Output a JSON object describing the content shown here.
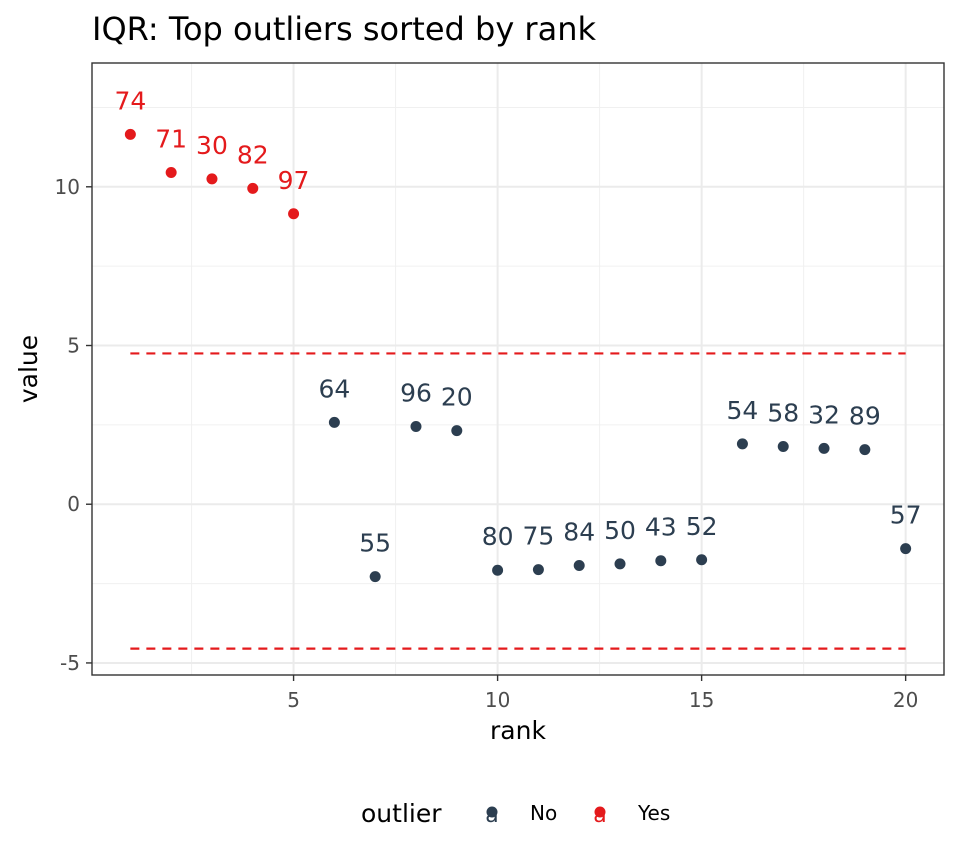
{
  "chart_data": {
    "type": "scatter",
    "title": "IQR: Top outliers sorted by rank",
    "xlabel": "rank",
    "ylabel": "value",
    "xlim": [
      0.06,
      20.94
    ],
    "ylim": [
      -5.38,
      13.9
    ],
    "x_ticks": [
      5,
      10,
      15,
      20
    ],
    "x_tick_labels": [
      "5",
      "10",
      "15",
      "20"
    ],
    "y_ticks": [
      -5,
      0,
      5,
      10
    ],
    "y_tick_labels": [
      "-5",
      "0",
      "5",
      "10"
    ],
    "x_minor_ticks": [
      2.5,
      7.5,
      12.5,
      17.5
    ],
    "y_minor_ticks": [
      -2.5,
      2.5,
      7.5,
      12.5
    ],
    "grid": true,
    "thresholds": {
      "upper": 4.75,
      "lower": -4.55,
      "x_range": [
        1,
        20
      ],
      "color": "#e41a1c",
      "style": "dashed"
    },
    "colors": {
      "No": "#2c3e50",
      "Yes": "#e41a1c"
    },
    "points": [
      {
        "rank": 1,
        "value": 11.65,
        "label": "74",
        "outlier": "Yes"
      },
      {
        "rank": 2,
        "value": 10.45,
        "label": "71",
        "outlier": "Yes"
      },
      {
        "rank": 3,
        "value": 10.25,
        "label": "30",
        "outlier": "Yes"
      },
      {
        "rank": 4,
        "value": 9.95,
        "label": "82",
        "outlier": "Yes"
      },
      {
        "rank": 5,
        "value": 9.15,
        "label": "97",
        "outlier": "Yes"
      },
      {
        "rank": 6,
        "value": 2.58,
        "label": "64",
        "outlier": "No"
      },
      {
        "rank": 7,
        "value": -2.28,
        "label": "55",
        "outlier": "No"
      },
      {
        "rank": 8,
        "value": 2.45,
        "label": "96",
        "outlier": "No"
      },
      {
        "rank": 9,
        "value": 2.32,
        "label": "20",
        "outlier": "No"
      },
      {
        "rank": 10,
        "value": -2.08,
        "label": "80",
        "outlier": "No"
      },
      {
        "rank": 11,
        "value": -2.06,
        "label": "75",
        "outlier": "No"
      },
      {
        "rank": 12,
        "value": -1.93,
        "label": "84",
        "outlier": "No"
      },
      {
        "rank": 13,
        "value": -1.88,
        "label": "50",
        "outlier": "No"
      },
      {
        "rank": 14,
        "value": -1.78,
        "label": "43",
        "outlier": "No"
      },
      {
        "rank": 15,
        "value": -1.75,
        "label": "52",
        "outlier": "No"
      },
      {
        "rank": 16,
        "value": 1.9,
        "label": "54",
        "outlier": "No"
      },
      {
        "rank": 17,
        "value": 1.82,
        "label": "58",
        "outlier": "No"
      },
      {
        "rank": 18,
        "value": 1.76,
        "label": "32",
        "outlier": "No"
      },
      {
        "rank": 19,
        "value": 1.72,
        "label": "89",
        "outlier": "No"
      },
      {
        "rank": 20,
        "value": -1.4,
        "label": "57",
        "outlier": "No"
      }
    ],
    "legend": {
      "title": "outlier",
      "position": "bottom",
      "key_glyph": "a",
      "entries": [
        {
          "label": "No",
          "color": "#2c3e50"
        },
        {
          "label": "Yes",
          "color": "#e41a1c"
        }
      ]
    }
  }
}
